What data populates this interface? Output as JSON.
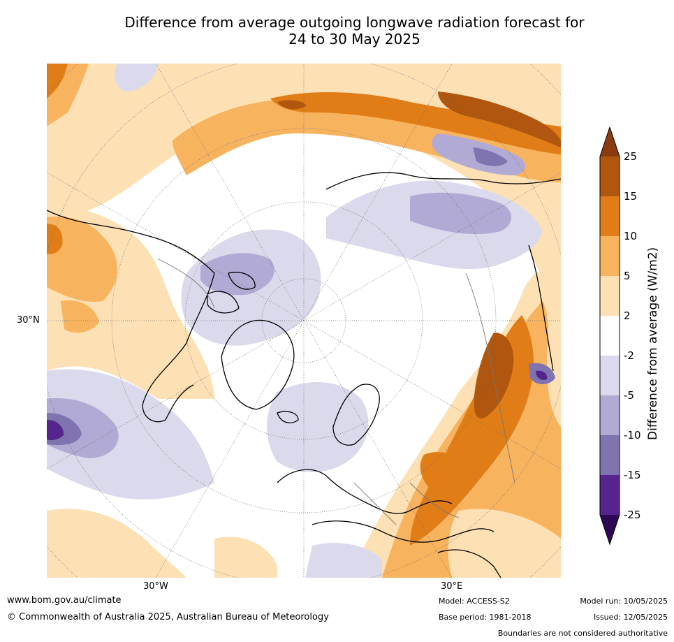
{
  "title": {
    "line1": "Difference from average outgoing longwave radiation forecast for",
    "line2": "24 to 30 May 2025"
  },
  "map": {
    "projection": "north-polar-stereographic",
    "lat_label": "30°N",
    "lon_labels": {
      "west": "30°W",
      "east": "30°E"
    },
    "regions": [
      {
        "area": "north pacific / siberia arc",
        "category": "positive 5 to 15"
      },
      {
        "area": "central asia / middle east",
        "category": "positive 10 to 25"
      },
      {
        "area": "north america west",
        "category": "positive 2 to 10"
      },
      {
        "area": "canadian arctic / greenland",
        "category": "negative -2 to -10"
      },
      {
        "area": "east asia / japan",
        "category": "negative -5 to -15"
      },
      {
        "area": "subtropical atlantic",
        "category": "negative -10 to -25"
      }
    ]
  },
  "colorbar": {
    "label": "Difference from average (W/m2)",
    "ticks": [
      "25",
      "15",
      "10",
      "5",
      "2",
      "-2",
      "-5",
      "-10",
      "-15",
      "-25"
    ],
    "colors": [
      "#8a3c0f",
      "#b0560f",
      "#e07d17",
      "#f8b35f",
      "#fde0b4",
      "#ffffff",
      "#dadaec",
      "#b1aad4",
      "#7f73b0",
      "#55248c",
      "#2e0854"
    ]
  },
  "footer": {
    "website": "www.bom.gov.au/climate",
    "copyright": "© Commonwealth of Australia 2025, Australian Bureau of Meteorology",
    "model": "Model: ACCESS-S2",
    "base_period": "Base period: 1981-2018",
    "model_run": "Model run: 10/05/2025",
    "issued": "Issued: 12/05/2025",
    "disclaimer": "Boundaries are not considered authoritative"
  }
}
